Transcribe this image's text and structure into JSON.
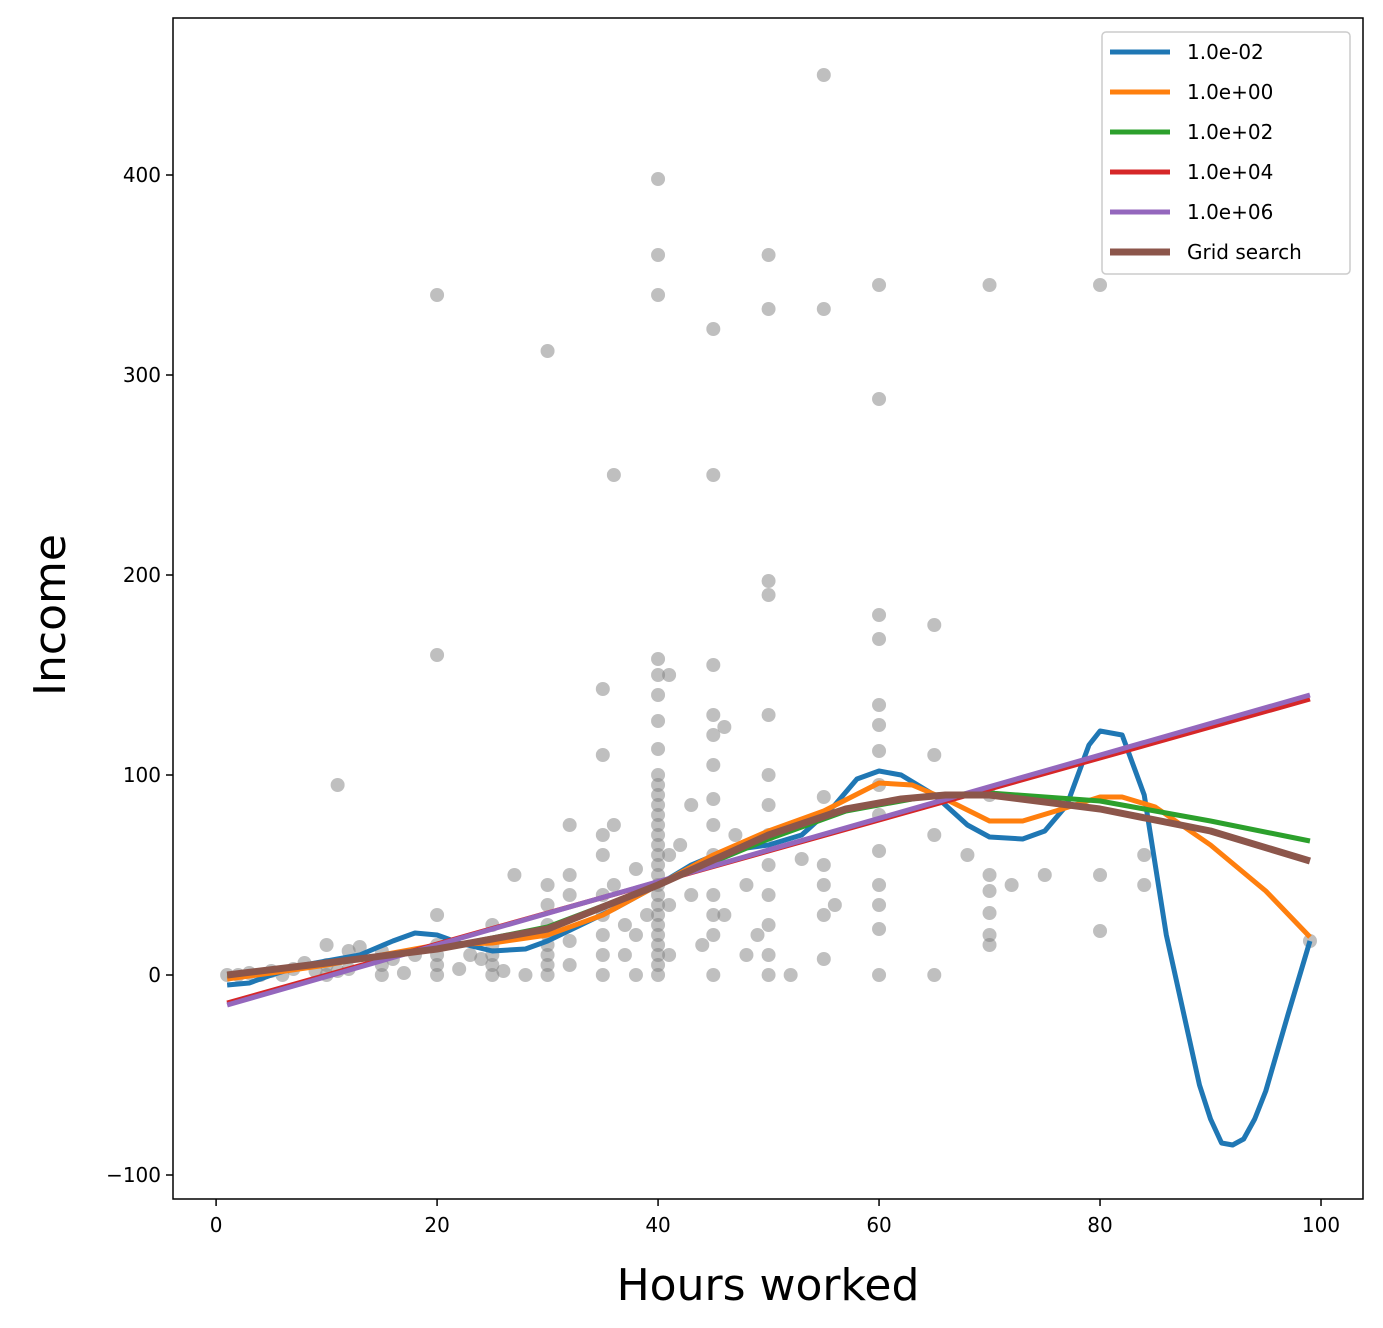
{
  "chart_data": {
    "type": "scatter",
    "xlabel": "Hours worked",
    "ylabel": "Income",
    "xlim": [
      -3.9,
      103.8
    ],
    "ylim": [
      -112,
      478.5
    ],
    "xticks": [
      0,
      20,
      40,
      60,
      80,
      100
    ],
    "yticks": [
      {
        "value": -100,
        "label": "−100"
      },
      0,
      100,
      200,
      300,
      400
    ],
    "legend": "upper right",
    "points": {
      "color": "#808080",
      "x": [
        1,
        2,
        3,
        4,
        5,
        6,
        7,
        8,
        9,
        10,
        10,
        10,
        11,
        11,
        12,
        12,
        13,
        15,
        15,
        15,
        16,
        17,
        18,
        20,
        20,
        20,
        20,
        20,
        20,
        20,
        22,
        23,
        24,
        25,
        25,
        25,
        25,
        25,
        26,
        27,
        28,
        30,
        30,
        30,
        30,
        30,
        30,
        30,
        30,
        30,
        32,
        32,
        32,
        32,
        32,
        35,
        35,
        35,
        35,
        35,
        35,
        35,
        35,
        35,
        36,
        36,
        36,
        37,
        37,
        38,
        38,
        38,
        39,
        40,
        40,
        40,
        40,
        40,
        40,
        40,
        40,
        40,
        40,
        40,
        40,
        40,
        40,
        40,
        40,
        40,
        40,
        40,
        40,
        40,
        40,
        40,
        40,
        40,
        40,
        40,
        40,
        40,
        41,
        41,
        41,
        41,
        42,
        43,
        43,
        44,
        45,
        45,
        45,
        45,
        45,
        45,
        45,
        45,
        45,
        45,
        45,
        45,
        45,
        46,
        46,
        47,
        48,
        48,
        49,
        50,
        50,
        50,
        50,
        50,
        50,
        50,
        50,
        50,
        50,
        50,
        50,
        50,
        52,
        53,
        55,
        55,
        55,
        55,
        55,
        55,
        55,
        56,
        60,
        60,
        60,
        60,
        60,
        60,
        60,
        60,
        60,
        60,
        60,
        60,
        60,
        60,
        65,
        65,
        65,
        65,
        68,
        70,
        70,
        70,
        70,
        70,
        70,
        70,
        72,
        75,
        80,
        80,
        80,
        84,
        84,
        99
      ],
      "y": [
        0,
        0,
        1,
        0,
        2,
        0,
        3,
        6,
        2,
        15,
        5,
        0,
        95,
        2,
        12,
        3,
        14,
        12,
        0,
        5,
        8,
        1,
        10,
        340,
        160,
        30,
        0,
        10,
        5,
        15,
        3,
        10,
        8,
        25,
        0,
        15,
        5,
        10,
        2,
        50,
        0,
        45,
        35,
        25,
        15,
        5,
        0,
        312,
        10,
        20,
        75,
        50,
        40,
        17,
        5,
        143,
        110,
        70,
        60,
        40,
        20,
        10,
        0,
        30,
        250,
        75,
        45,
        25,
        10,
        20,
        0,
        53,
        30,
        398,
        360,
        340,
        158,
        150,
        140,
        127,
        113,
        100,
        90,
        80,
        70,
        60,
        50,
        40,
        30,
        20,
        10,
        0,
        5,
        15,
        25,
        35,
        45,
        55,
        65,
        75,
        85,
        95,
        150,
        10,
        35,
        60,
        65,
        40,
        85,
        15,
        323,
        250,
        155,
        130,
        120,
        105,
        88,
        75,
        60,
        40,
        30,
        20,
        0,
        124,
        30,
        70,
        45,
        10,
        20,
        360,
        333,
        197,
        190,
        130,
        100,
        85,
        70,
        55,
        40,
        25,
        10,
        0,
        0,
        58,
        450,
        333,
        89,
        55,
        45,
        30,
        8,
        35,
        345,
        288,
        180,
        168,
        135,
        125,
        112,
        95,
        80,
        62,
        45,
        35,
        23,
        0,
        175,
        110,
        70,
        0,
        60,
        345,
        90,
        50,
        42,
        31,
        20,
        15,
        45,
        50,
        345,
        50,
        22,
        60,
        45,
        17
      ]
    },
    "series": [
      {
        "name": "1.0e-02",
        "color": "#1f77b4",
        "x": [
          1,
          3,
          5,
          8,
          10,
          13,
          16,
          18,
          20,
          22,
          25,
          28,
          30,
          33,
          36,
          40,
          43,
          46,
          50,
          53,
          56,
          58,
          60,
          62,
          65,
          68,
          70,
          73,
          75,
          77,
          79,
          80,
          82,
          84,
          86,
          88,
          89,
          90,
          91,
          92,
          93,
          94,
          95,
          97,
          99
        ],
        "values": [
          -5,
          -4,
          0,
          5,
          7,
          10,
          17,
          21,
          20,
          16,
          12,
          13,
          17,
          25,
          33,
          45,
          55,
          62,
          65,
          70,
          85,
          98,
          102,
          100,
          90,
          75,
          69,
          68,
          72,
          85,
          115,
          122,
          120,
          90,
          20,
          -30,
          -55,
          -72,
          -84,
          -85,
          -82,
          -72,
          -58,
          -20,
          17
        ]
      },
      {
        "name": "1.0e+00",
        "color": "#ff7f0e",
        "x": [
          1,
          5,
          10,
          15,
          20,
          25,
          30,
          35,
          40,
          45,
          50,
          55,
          60,
          63,
          66,
          70,
          73,
          76,
          80,
          82,
          85,
          90,
          95,
          99
        ],
        "values": [
          -2,
          1,
          5,
          10,
          15,
          16,
          20,
          30,
          45,
          60,
          72,
          82,
          96,
          95,
          88,
          77,
          77,
          82,
          89,
          89,
          84,
          65,
          42,
          19
        ]
      },
      {
        "name": "1.0e+02",
        "color": "#2ca02c",
        "x": [
          1,
          10,
          20,
          30,
          40,
          50,
          57,
          65,
          70,
          80,
          90,
          99
        ],
        "values": [
          0,
          6,
          13,
          24,
          45,
          68,
          82,
          90,
          91,
          87,
          77,
          67
        ]
      },
      {
        "name": "1.0e+04",
        "color": "#d62728",
        "x": [
          1,
          99
        ],
        "values": [
          -14,
          138
        ]
      },
      {
        "name": "1.0e+06",
        "color": "#9467bd",
        "x": [
          1,
          99
        ],
        "values": [
          -15,
          140
        ]
      },
      {
        "name": "Grid search",
        "color": "#8c564b",
        "x": [
          1,
          10,
          20,
          30,
          40,
          50,
          57,
          62,
          66,
          70,
          80,
          90,
          99
        ],
        "values": [
          0,
          6,
          13,
          23,
          45,
          70,
          83,
          88,
          90,
          90,
          83,
          72,
          57
        ]
      }
    ]
  }
}
